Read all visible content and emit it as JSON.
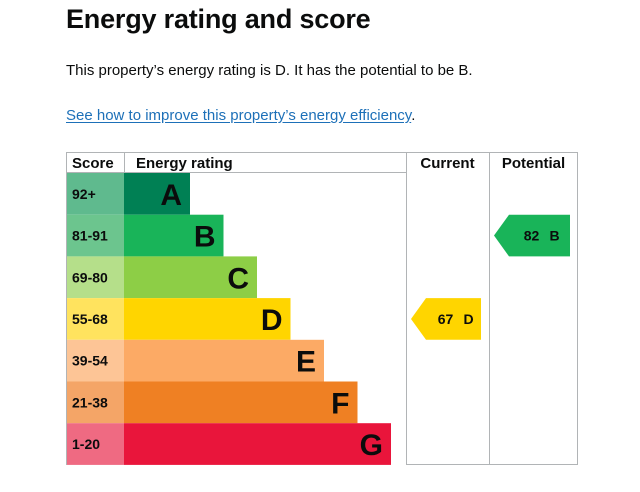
{
  "page": {
    "title": "Energy rating and score",
    "intro": "This property’s energy rating is D. It has the potential to be B.",
    "link_text": "See how to improve this property’s energy efficiency",
    "link_suffix": "."
  },
  "graph": {
    "headers": {
      "score": "Score",
      "rating": "Energy rating",
      "current": "Current",
      "potential": "Potential"
    },
    "bands": [
      {
        "score": "92+",
        "letter": "A",
        "color": "#008054",
        "score_bg": "#5fba8e"
      },
      {
        "score": "81-91",
        "letter": "B",
        "color": "#19b459",
        "score_bg": "#6cc58e"
      },
      {
        "score": "69-80",
        "letter": "C",
        "color": "#8dce46",
        "score_bg": "#b5df8a"
      },
      {
        "score": "55-68",
        "letter": "D",
        "color": "#ffd500",
        "score_bg": "#ffe35e"
      },
      {
        "score": "39-54",
        "letter": "E",
        "color": "#fcaa65",
        "score_bg": "#fdc596"
      },
      {
        "score": "21-38",
        "letter": "F",
        "color": "#ef8023",
        "score_bg": "#f4a567"
      },
      {
        "score": "1-20",
        "letter": "G",
        "color": "#e9153b",
        "score_bg": "#ef6a82"
      }
    ],
    "current": {
      "score": "67",
      "letter": "D",
      "band_index": 3,
      "color": "#ffd500"
    },
    "potential": {
      "score": "82",
      "letter": "B",
      "band_index": 1,
      "color": "#19b459"
    }
  }
}
